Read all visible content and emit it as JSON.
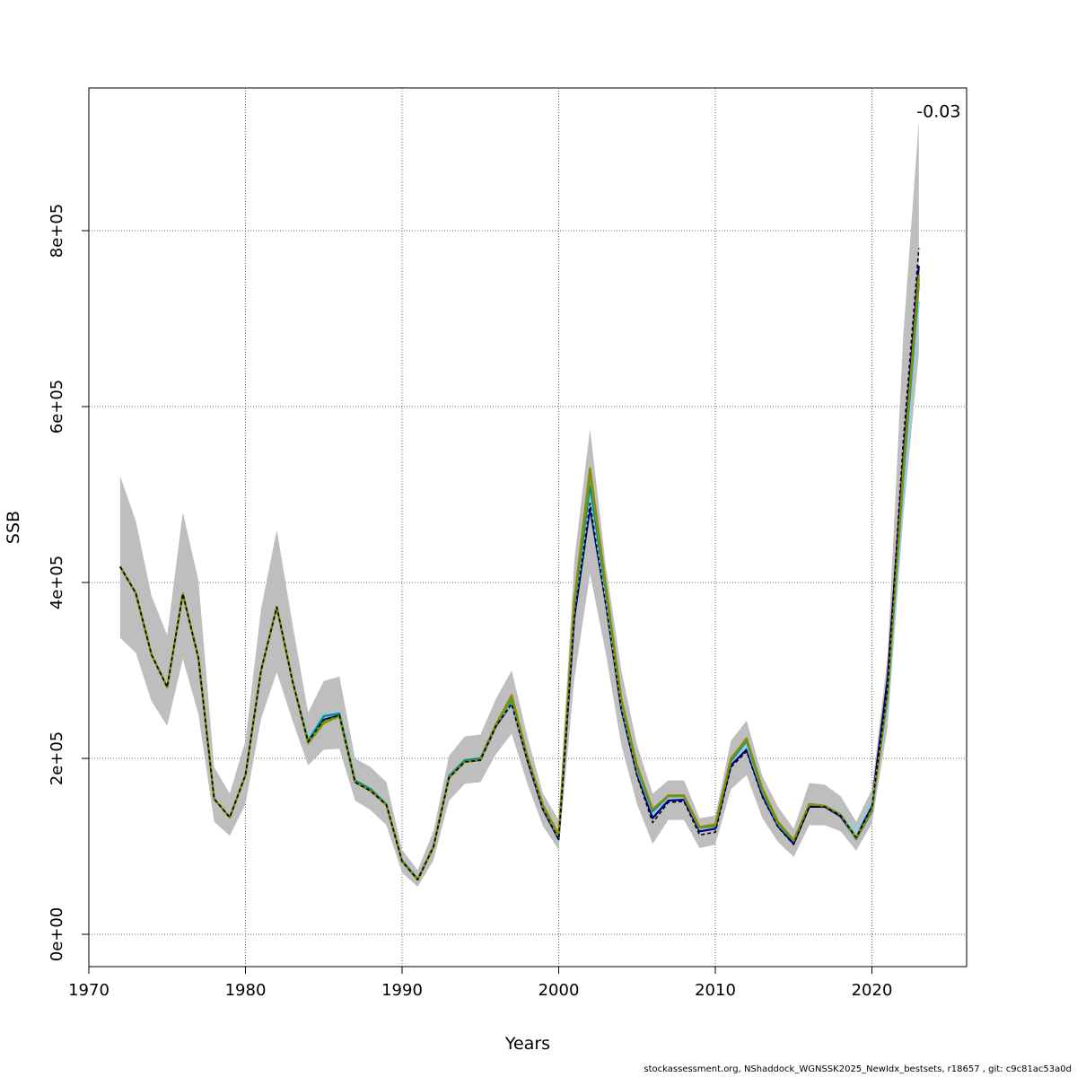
{
  "footer": "stockassessment.org, NShaddock_WGNSSK2025_NewIdx_bestsets, r18657 , git: c9c81ac53a0d",
  "chart_data": {
    "type": "line",
    "xlabel": "Years",
    "ylabel": "SSB",
    "xlim": [
      1970,
      2026
    ],
    "ylim": [
      -35000,
      960000
    ],
    "x_ticks": [
      1970,
      1980,
      1990,
      2000,
      2010,
      2020
    ],
    "y_ticks": [
      0,
      200000,
      400000,
      600000,
      800000
    ],
    "y_tick_labels": [
      "0e+00",
      "2e+05",
      "4e+05",
      "6e+05",
      "8e+05"
    ],
    "x_tick_labels": [
      "1970",
      "1980",
      "1990",
      "2000",
      "2010",
      "2020"
    ],
    "grid": true,
    "annotation": {
      "text": "-0.03",
      "x": 2023,
      "y": 935000
    },
    "band_color": "#bebebe",
    "years": [
      1972,
      1973,
      1974,
      1975,
      1976,
      1977,
      1978,
      1979,
      1980,
      1981,
      1982,
      1983,
      1984,
      1985,
      1986,
      1987,
      1988,
      1989,
      1990,
      1991,
      1992,
      1993,
      1994,
      1995,
      1996,
      1997,
      1998,
      1999,
      2000,
      2001,
      2002,
      2003,
      2004,
      2005,
      2006,
      2007,
      2008,
      2009,
      2010,
      2011,
      2012,
      2013,
      2014,
      2015,
      2016,
      2017,
      2018,
      2019,
      2020,
      2021,
      2022,
      2023
    ],
    "band_lower": [
      337000,
      320000,
      265000,
      237000,
      313000,
      250000,
      128000,
      112000,
      148000,
      245000,
      298000,
      243000,
      192000,
      210000,
      211000,
      152000,
      141000,
      124000,
      70000,
      54000,
      84000,
      152000,
      171000,
      173000,
      205000,
      228000,
      171000,
      123000,
      96000,
      290000,
      410000,
      320000,
      215000,
      148000,
      103000,
      130000,
      130000,
      98000,
      102000,
      165000,
      181000,
      132000,
      105000,
      88000,
      124000,
      124000,
      117000,
      95000,
      126000,
      235000,
      475000,
      660000
    ],
    "band_upper": [
      521000,
      470000,
      385000,
      340000,
      480000,
      402000,
      190000,
      160000,
      220000,
      370000,
      460000,
      353000,
      252000,
      288000,
      293000,
      200000,
      190000,
      173000,
      96000,
      73000,
      117000,
      203000,
      225000,
      227000,
      268000,
      300000,
      225000,
      160000,
      130000,
      425000,
      575000,
      420000,
      300000,
      215000,
      160000,
      175000,
      175000,
      132000,
      135000,
      220000,
      243000,
      180000,
      145000,
      120000,
      172000,
      170000,
      157000,
      128000,
      165000,
      315000,
      680000,
      925000
    ],
    "series": [
      {
        "color": "#000000",
        "dashed": true,
        "values": [
          418000,
          388000,
          318000,
          281000,
          387000,
          314000,
          154000,
          133000,
          181000,
          300000,
          372000,
          288000,
          219000,
          244000,
          249000,
          173000,
          163000,
          147000,
          83000,
          62000,
          99000,
          178000,
          196000,
          198000,
          237000,
          262000,
          198000,
          142000,
          108000,
          360000,
          490000,
          375000,
          255000,
          180000,
          127000,
          150000,
          151000,
          113000,
          116000,
          190000,
          208000,
          156000,
          122000,
          102000,
          145000,
          145000,
          135000,
          110000,
          145000,
          280000,
          560000,
          780000
        ]
      },
      {
        "color": "#00008b",
        "dashed": false,
        "values": [
          418000,
          388000,
          318000,
          281000,
          387000,
          314000,
          154000,
          133000,
          181000,
          300000,
          372000,
          288000,
          219000,
          244000,
          249000,
          173000,
          163000,
          147000,
          83000,
          62000,
          99000,
          178000,
          196000,
          198000,
          237000,
          262000,
          198000,
          142000,
          108000,
          360000,
          485000,
          378000,
          256000,
          182000,
          132000,
          152000,
          153000,
          117000,
          120000,
          192000,
          210000,
          158000,
          123000,
          103000,
          145000,
          145000,
          134000,
          109000,
          148000,
          290000,
          540000,
          760000
        ]
      },
      {
        "color": "#87ceeb",
        "dashed": false,
        "values": [
          418000,
          388000,
          318000,
          281000,
          387000,
          314000,
          154000,
          133000,
          181000,
          300000,
          372000,
          288000,
          222000,
          250000,
          252000,
          175000,
          165000,
          148000,
          84000,
          63000,
          100000,
          180000,
          198000,
          200000,
          239000,
          262000,
          200000,
          144000,
          110000,
          370000,
          495000,
          382000,
          260000,
          186000,
          138000,
          155000,
          156000,
          120000,
          124000,
          196000,
          215000,
          162000,
          125000,
          106000,
          148000,
          146000,
          137000,
          116000,
          150000,
          260000,
          500000,
          720000
        ]
      },
      {
        "color": "#008b8b",
        "dashed": false,
        "values": [
          418000,
          388000,
          318000,
          281000,
          387000,
          314000,
          154000,
          133000,
          181000,
          300000,
          372000,
          288000,
          220000,
          248000,
          251000,
          175000,
          165000,
          148000,
          84000,
          63000,
          100000,
          180000,
          198000,
          200000,
          239000,
          266000,
          201000,
          145000,
          111000,
          373000,
          510000,
          390000,
          264000,
          188000,
          140000,
          157000,
          157000,
          121000,
          123000,
          197000,
          220000,
          163000,
          126000,
          106000,
          148000,
          146000,
          136000,
          108000,
          140000,
          270000,
          520000,
          740000
        ]
      },
      {
        "color": "#8b8b00",
        "dashed": false,
        "values": [
          418000,
          388000,
          318000,
          281000,
          387000,
          314000,
          154000,
          133000,
          181000,
          300000,
          372000,
          288000,
          217000,
          240000,
          248000,
          173000,
          163000,
          147000,
          83000,
          62000,
          99000,
          178000,
          196000,
          198000,
          239000,
          272000,
          203000,
          147000,
          113000,
          380000,
          530000,
          398000,
          268000,
          192000,
          142000,
          158000,
          158000,
          122000,
          125000,
          200000,
          223000,
          166000,
          128000,
          107000,
          148000,
          146000,
          136000,
          110000,
          142000,
          275000,
          530000,
          750000
        ]
      },
      {
        "color": "#6aa121",
        "dashed": false,
        "values": [
          418000,
          388000,
          318000,
          281000,
          387000,
          314000,
          154000,
          133000,
          181000,
          300000,
          372000,
          288000,
          218000,
          242000,
          248000,
          173000,
          163000,
          147000,
          83000,
          62000,
          99000,
          178000,
          196000,
          198000,
          238000,
          269000,
          202000,
          146000,
          112000,
          377000,
          522000,
          394000,
          266000,
          190000,
          142000,
          157000,
          157000,
          121000,
          124000,
          199000,
          222000,
          165000,
          127000,
          107000,
          148000,
          146000,
          136000,
          109000,
          141000,
          272000,
          525000,
          745000
        ]
      }
    ]
  }
}
